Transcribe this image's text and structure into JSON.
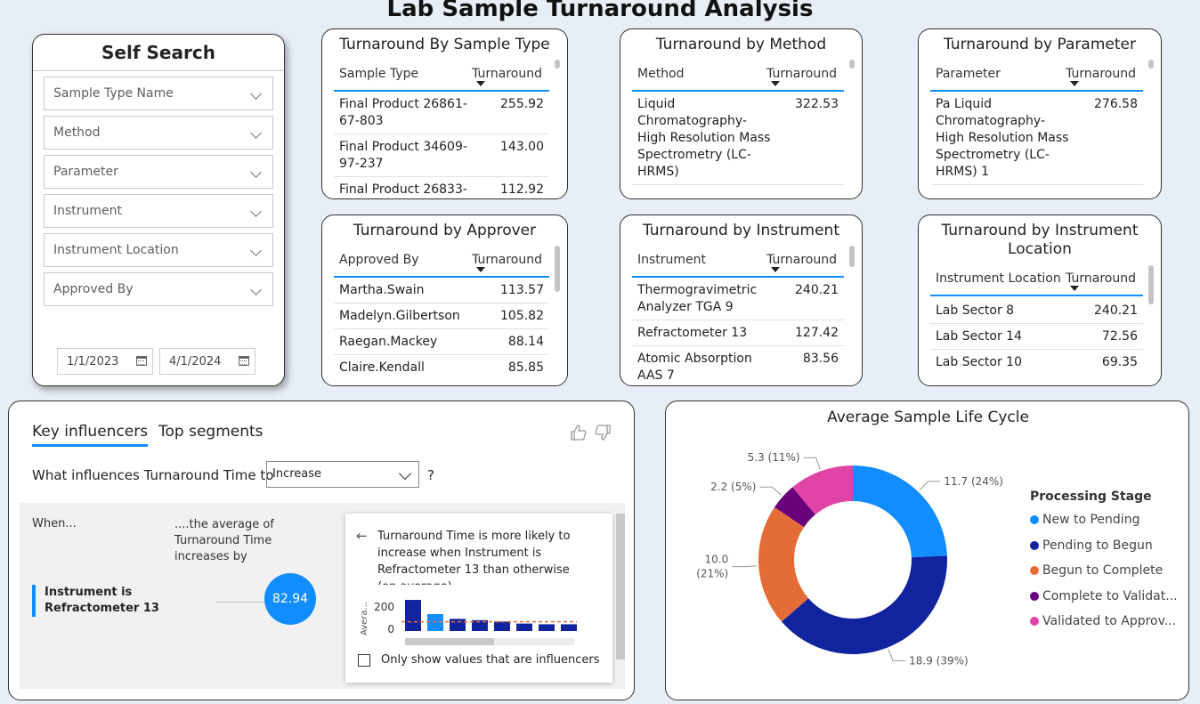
{
  "page_title": "Lab Sample Turnaround Analysis",
  "self_search": {
    "title": "Self Search",
    "slicers": [
      "Sample Type Name",
      "Method",
      "Parameter",
      "Instrument",
      "Instrument Location",
      "Approved By"
    ],
    "date_start": "1/1/2023",
    "date_end": "4/1/2024"
  },
  "tables": {
    "sample_type": {
      "title": "Turnaround By Sample Type",
      "col1": "Sample Type",
      "col2": "Turnaround",
      "rows": [
        {
          "name": "Final Product 26861-67-803",
          "value": "255.92"
        },
        {
          "name": "Final Product 34609-97-237",
          "value": "143.00"
        },
        {
          "name": "Final Product 26833-",
          "value": "112.92"
        }
      ]
    },
    "method": {
      "title": "Turnaround by Method",
      "col1": "Method",
      "col2": "Turnaround",
      "rows": [
        {
          "name": "Liquid Chromatography-High Resolution Mass Spectrometry (LC-HRMS)",
          "value": "322.53"
        }
      ]
    },
    "parameter": {
      "title": "Turnaround by Parameter",
      "col1": "Parameter",
      "col2": "Turnaround",
      "rows": [
        {
          "name": "Pa Liquid Chromatography-High Resolution Mass Spectrometry (LC-HRMS) 1",
          "value": "276.58"
        }
      ]
    },
    "approver": {
      "title": "Turnaround by Approver",
      "col1": "Approved By",
      "col2": "Turnaround",
      "rows": [
        {
          "name": "Martha.Swain",
          "value": "113.57"
        },
        {
          "name": "Madelyn.Gilbertson",
          "value": "105.82"
        },
        {
          "name": "Raegan.Mackey",
          "value": "88.14"
        },
        {
          "name": "Claire.Kendall",
          "value": "85.85"
        }
      ]
    },
    "instrument": {
      "title": "Turnaround by Instrument",
      "col1": "Instrument",
      "col2": "Turnaround",
      "rows": [
        {
          "name": "Thermogravimetric Analyzer TGA 9",
          "value": "240.21"
        },
        {
          "name": "Refractometer 13",
          "value": "127.42"
        },
        {
          "name": "Atomic Absorption AAS 7",
          "value": "83.56"
        }
      ]
    },
    "location": {
      "title": "Turnaround by Instrument Location",
      "col1": "Instrument Location",
      "col2": "Turnaround",
      "rows": [
        {
          "name": "Lab Sector 8",
          "value": "240.21"
        },
        {
          "name": "Lab Sector 14",
          "value": "72.56"
        },
        {
          "name": "Lab Sector 10",
          "value": "69.35"
        }
      ]
    }
  },
  "key_influencers": {
    "tab_active": "Key influencers",
    "tab_other": "Top segments",
    "question": "What influences Turnaround Time to",
    "dropdown_value": "Increase",
    "question_mark": "?",
    "when_label": "When...",
    "avg_label": "....the average of Turnaround Time increases by",
    "influencer": "Instrument is Refractometer 13",
    "influencer_value": "82.94",
    "back_arrow": "←",
    "popup_text": "Turnaround Time is more likely to increase when Instrument is Refractometer 13 than otherwise (on average).",
    "mini_axis_label": "Avera...",
    "mini_ticks": [
      "200",
      "0"
    ],
    "mini_bar_values": [
      230,
      125,
      90,
      80,
      70,
      55,
      50,
      50
    ],
    "mini_bar_colors": [
      "#12239e",
      "#118dff",
      "#12239e",
      "#12239e",
      "#12239e",
      "#12239e",
      "#12239e",
      "#12239e"
    ],
    "mini_avg_value": 68,
    "mini_y_max": 250,
    "checkbox_label": "Only show values that are influencers"
  },
  "chart_data": {
    "type": "pie",
    "title": "Average Sample Life Cycle",
    "legend_title": "Processing Stage",
    "categories": [
      "New to Pending",
      "Pending to Begun",
      "Begun to Complete",
      "Complete to Validat...",
      "Validated to Approv..."
    ],
    "values": [
      11.7,
      18.9,
      10.0,
      2.2,
      5.3
    ],
    "labels": [
      "11.7 (24%)",
      "18.9 (39%)",
      "10.0 (21%)",
      "2.2 (5%)",
      "5.3 (11%)"
    ],
    "colors": [
      "#118dff",
      "#12239e",
      "#e66c37",
      "#6b007b",
      "#e044a7"
    ]
  }
}
